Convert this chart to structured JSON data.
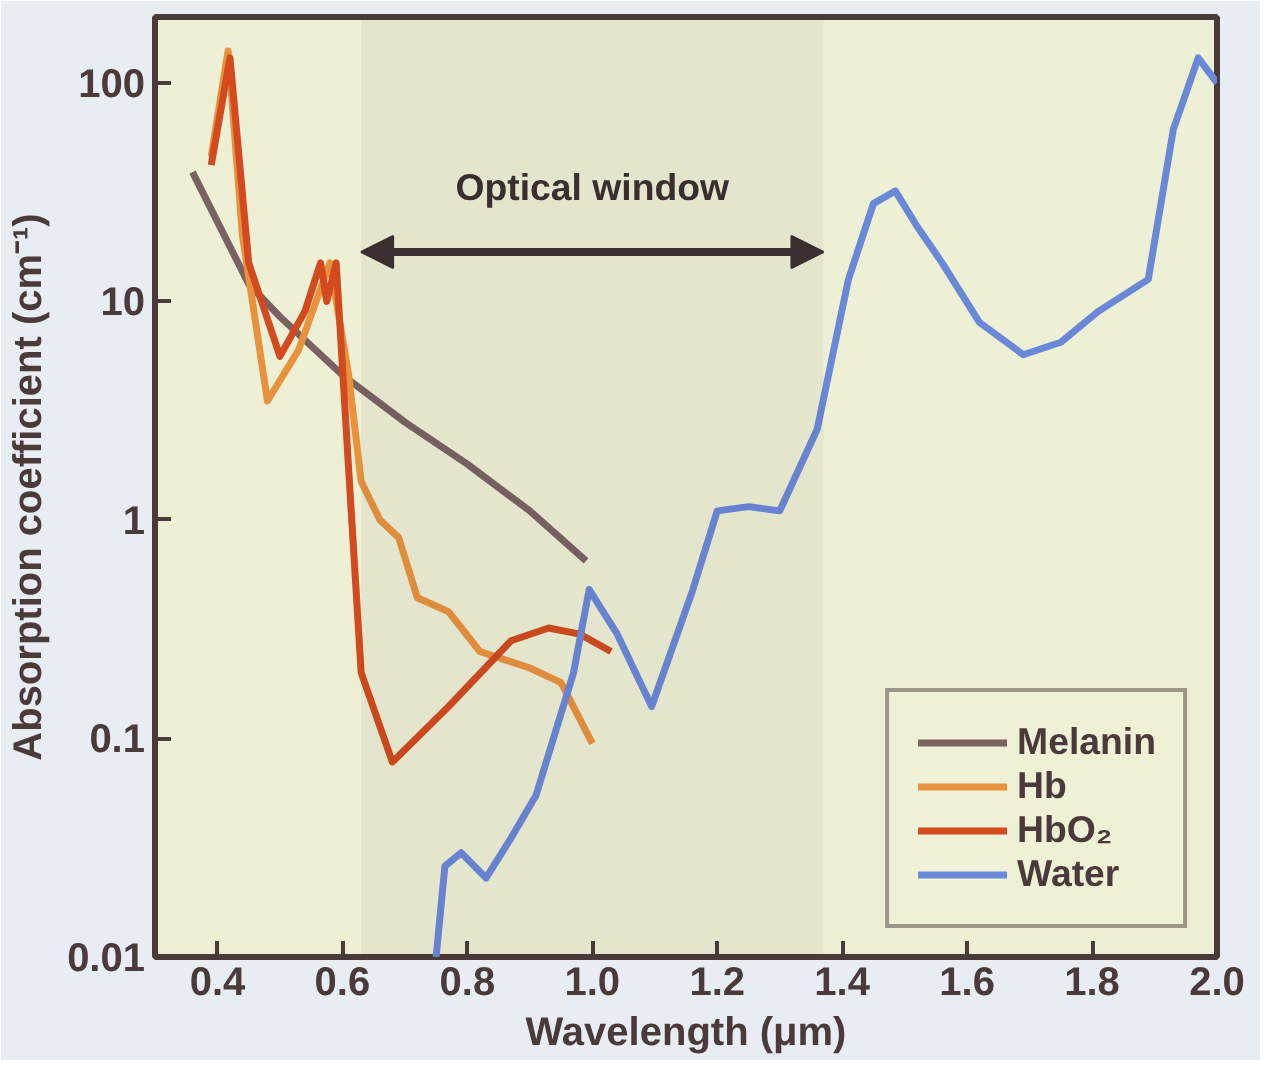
{
  "chart_data": {
    "type": "line",
    "xlabel": "Wavelength (μm)",
    "ylabel": "Absorption coefficient (cm⁻¹)",
    "log": "y",
    "xlim": [
      0.3,
      2.0
    ],
    "ylim": [
      0.01,
      200
    ],
    "xticks": [
      0.4,
      0.6,
      0.8,
      {
        "value": 1.0,
        "label": "1.0"
      },
      1.2,
      1.4,
      1.6,
      1.8,
      {
        "value": 2.0,
        "label": "2.0"
      }
    ],
    "yticks": [
      0.01,
      0.1,
      1,
      10,
      100
    ],
    "legend": "bottom right",
    "grid": false,
    "bands": [
      {
        "axis": "x",
        "from": 0.63,
        "to": 1.37,
        "label": "Optical window",
        "color": "#3a2e2e"
      }
    ],
    "series": [
      {
        "name": "Melanin",
        "color": "#7a6262",
        "x": [
          0.36,
          0.45,
          0.5,
          0.6,
          0.7,
          0.8,
          0.9,
          0.99
        ],
        "values": [
          39,
          12,
          8.5,
          4.6,
          2.8,
          1.8,
          1.1,
          0.65
        ]
      },
      {
        "name": "Hb",
        "color": "#e8923e",
        "x": [
          0.39,
          0.417,
          0.44,
          0.48,
          0.53,
          0.58,
          0.61,
          0.63,
          0.66,
          0.69,
          0.72,
          0.77,
          0.82,
          0.9,
          0.95,
          1.0
        ],
        "values": [
          46,
          140,
          20,
          3.5,
          6,
          15,
          4.6,
          1.5,
          1.0,
          0.83,
          0.44,
          0.38,
          0.25,
          0.21,
          0.18,
          0.095
        ]
      },
      {
        "name": "HbO₂",
        "color": "#d24a1e",
        "x": [
          0.39,
          0.42,
          0.45,
          0.5,
          0.54,
          0.565,
          0.575,
          0.59,
          0.61,
          0.63,
          0.68,
          0.77,
          0.87,
          0.93,
          0.98,
          1.03
        ],
        "values": [
          42,
          130,
          15,
          5.6,
          9,
          15,
          10,
          15,
          1.7,
          0.2,
          0.078,
          0.14,
          0.28,
          0.32,
          0.3,
          0.25
        ]
      },
      {
        "name": "Water",
        "color": "#6a88d8",
        "x": [
          0.75,
          0.764,
          0.79,
          0.83,
          0.87,
          0.91,
          0.97,
          0.995,
          1.04,
          1.095,
          1.16,
          1.2,
          1.25,
          1.3,
          1.36,
          1.41,
          1.45,
          1.485,
          1.52,
          1.56,
          1.62,
          1.69,
          1.75,
          1.81,
          1.89,
          1.93,
          1.97,
          2.0
        ],
        "values": [
          0.01,
          0.026,
          0.03,
          0.023,
          0.035,
          0.055,
          0.2,
          0.48,
          0.3,
          0.14,
          0.47,
          1.1,
          1.15,
          1.1,
          2.6,
          12.6,
          28,
          32,
          22,
          15,
          8,
          5.7,
          6.5,
          9,
          12.6,
          61,
          130,
          100
        ]
      }
    ]
  }
}
